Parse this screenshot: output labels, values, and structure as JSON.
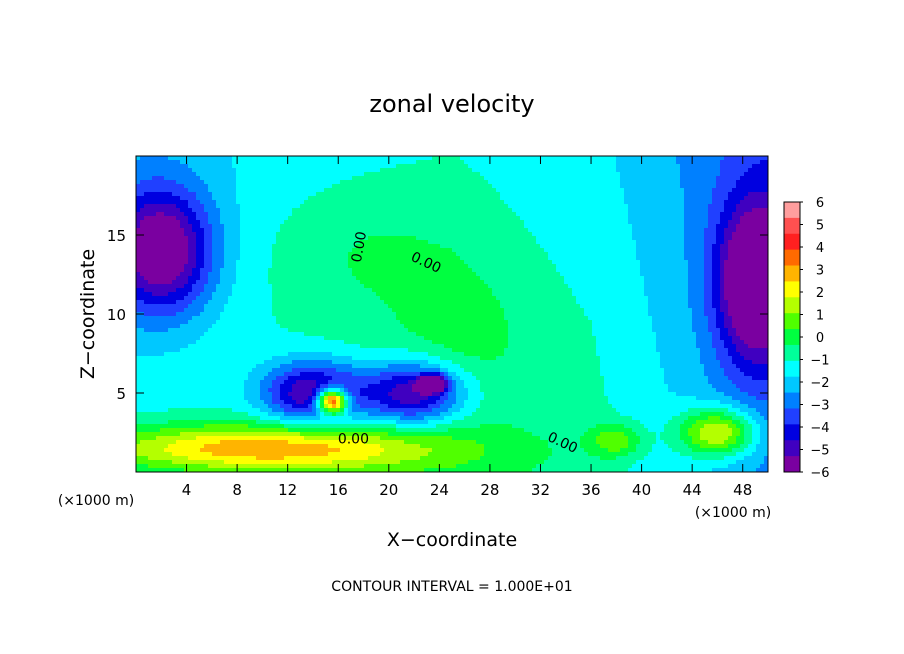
{
  "chart_data": {
    "type": "heatmap",
    "title": "zonal velocity",
    "xlabel": "X−coordinate",
    "ylabel": "Z−coordinate",
    "x_unit_left": "(×1000 m)",
    "x_unit_right": "(×1000 m)",
    "footer": "CONTOUR INTERVAL = 1.000E+01",
    "xlim": [
      0,
      50
    ],
    "ylim": [
      0,
      20
    ],
    "x_ticks": [
      4,
      8,
      12,
      16,
      20,
      24,
      28,
      32,
      36,
      40,
      44,
      48
    ],
    "x_tick_labels": [
      "4",
      "8",
      "12",
      "16",
      "20",
      "24",
      "28",
      "32",
      "36",
      "40",
      "44",
      "48"
    ],
    "y_ticks": [
      5,
      10,
      15
    ],
    "y_tick_labels": [
      "5",
      "10",
      "15"
    ],
    "colorbar": {
      "range": [
        -6,
        6
      ],
      "labels": [
        "6",
        "5",
        "4",
        "3",
        "2",
        "1",
        "0",
        "−1",
        "−2",
        "−3",
        "−4",
        "−5",
        "−6"
      ],
      "colors": [
        "#ff9e9e",
        "#ff5050",
        "#ff2020",
        "#ff6a00",
        "#ffb400",
        "#ffff00",
        "#b4ff00",
        "#50ff00",
        "#00ff40",
        "#00ff9a",
        "#00ffff",
        "#00c8ff",
        "#0080ff",
        "#2040ff",
        "#0000e0",
        "#4000c0",
        "#7a00a0"
      ]
    },
    "contour_labels": [
      {
        "text": "0.00",
        "x": 18,
        "y": 14.2,
        "angle": -80
      },
      {
        "text": "0.00",
        "x": 22.8,
        "y": 13.0,
        "angle": 25
      },
      {
        "text": "0.00",
        "x": 17.2,
        "y": 1.8,
        "angle": 0
      },
      {
        "text": "0.00",
        "x": 33.6,
        "y": 1.6,
        "angle": 25
      }
    ],
    "field_blobs": [
      {
        "x": 18,
        "y": 14,
        "rx": 8,
        "ry": 4.5,
        "v": 0.8
      },
      {
        "x": 26,
        "y": 9,
        "rx": 5,
        "ry": 4,
        "v": 0.7
      },
      {
        "x": 2,
        "y": 14,
        "rx": 4,
        "ry": 4,
        "v": -5
      },
      {
        "x": 49,
        "y": 12,
        "rx": 3,
        "ry": 5,
        "v": -5
      },
      {
        "x": 14,
        "y": 5,
        "rx": 4,
        "ry": 2,
        "v": -4.5
      },
      {
        "x": 22,
        "y": 5,
        "rx": 4,
        "ry": 2,
        "v": -4.5
      },
      {
        "x": 15.5,
        "y": 4.5,
        "rx": 1.2,
        "ry": 0.8,
        "v": 8
      },
      {
        "x": 23.5,
        "y": 5.6,
        "rx": 1,
        "ry": 0.5,
        "v": -6
      },
      {
        "x": 10,
        "y": 1.5,
        "rx": 14,
        "ry": 1.5,
        "v": 4
      },
      {
        "x": 46,
        "y": 2.5,
        "rx": 3,
        "ry": 1.5,
        "v": 4
      },
      {
        "x": 38,
        "y": 2,
        "rx": 2,
        "ry": 1,
        "v": 2
      }
    ]
  }
}
